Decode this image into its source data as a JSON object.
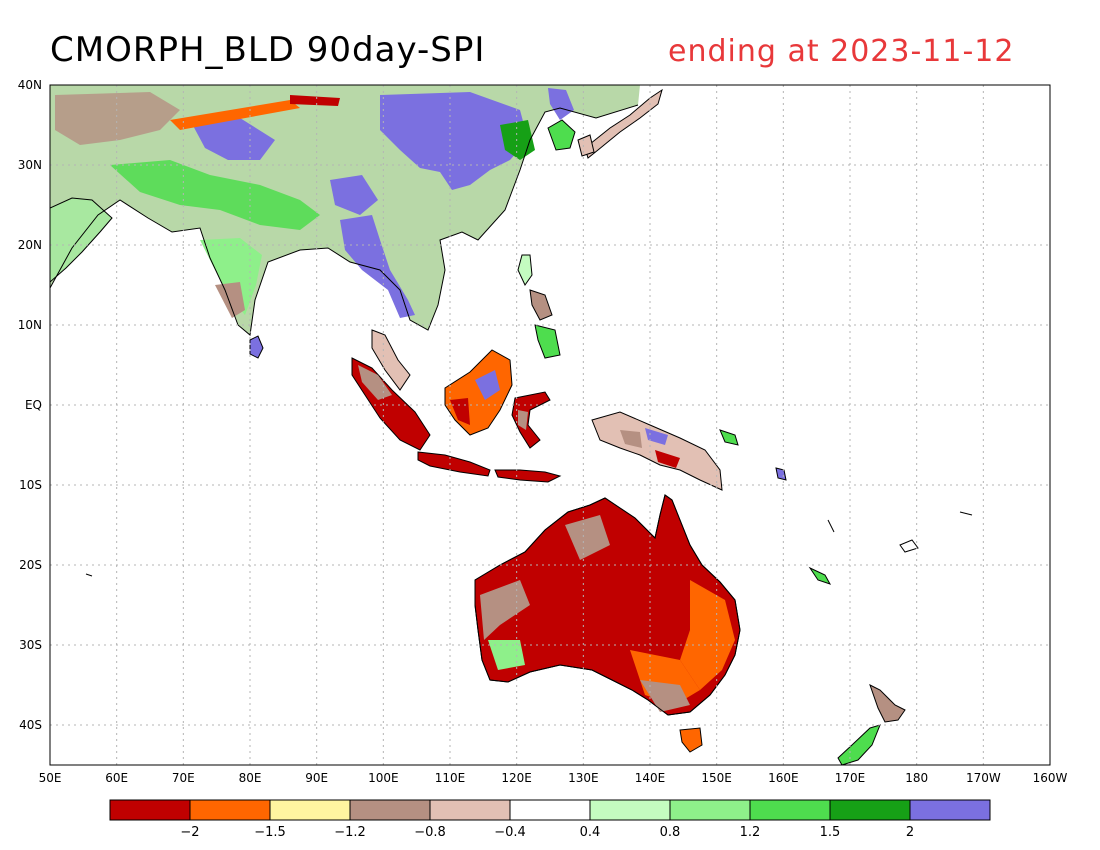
{
  "title": "CMORPH_BLD 90day-SPI",
  "subtitle": "ending at 2023-11-12",
  "colors": {
    "title": "#000000",
    "subtitle": "#e8383a",
    "land_outline": "#000000",
    "grid": "#b4b4b4"
  },
  "map": {
    "lat_labels": [
      "40N",
      "30N",
      "20N",
      "10N",
      "EQ",
      "10S",
      "20S",
      "30S",
      "40S"
    ],
    "lon_labels": [
      "50E",
      "60E",
      "70E",
      "80E",
      "90E",
      "100E",
      "110E",
      "120E",
      "130E",
      "140E",
      "150E",
      "160E",
      "170E",
      "180",
      "170W",
      "160W"
    ],
    "grid_style": "dotted"
  },
  "legend": {
    "swatches": [
      "#c00000",
      "#ff6600",
      "#fff5a0",
      "#b59082",
      "#e2c0b4",
      "#ffffff",
      "#c4fcc0",
      "#8ef08a",
      "#4edd4e",
      "#16a016",
      "#7b70e0"
    ],
    "tick_labels": [
      "-2",
      "-1.5",
      "-1.2",
      "-0.8",
      "-0.4",
      "0.4",
      "0.8",
      "1.2",
      "1.5",
      "2"
    ]
  }
}
